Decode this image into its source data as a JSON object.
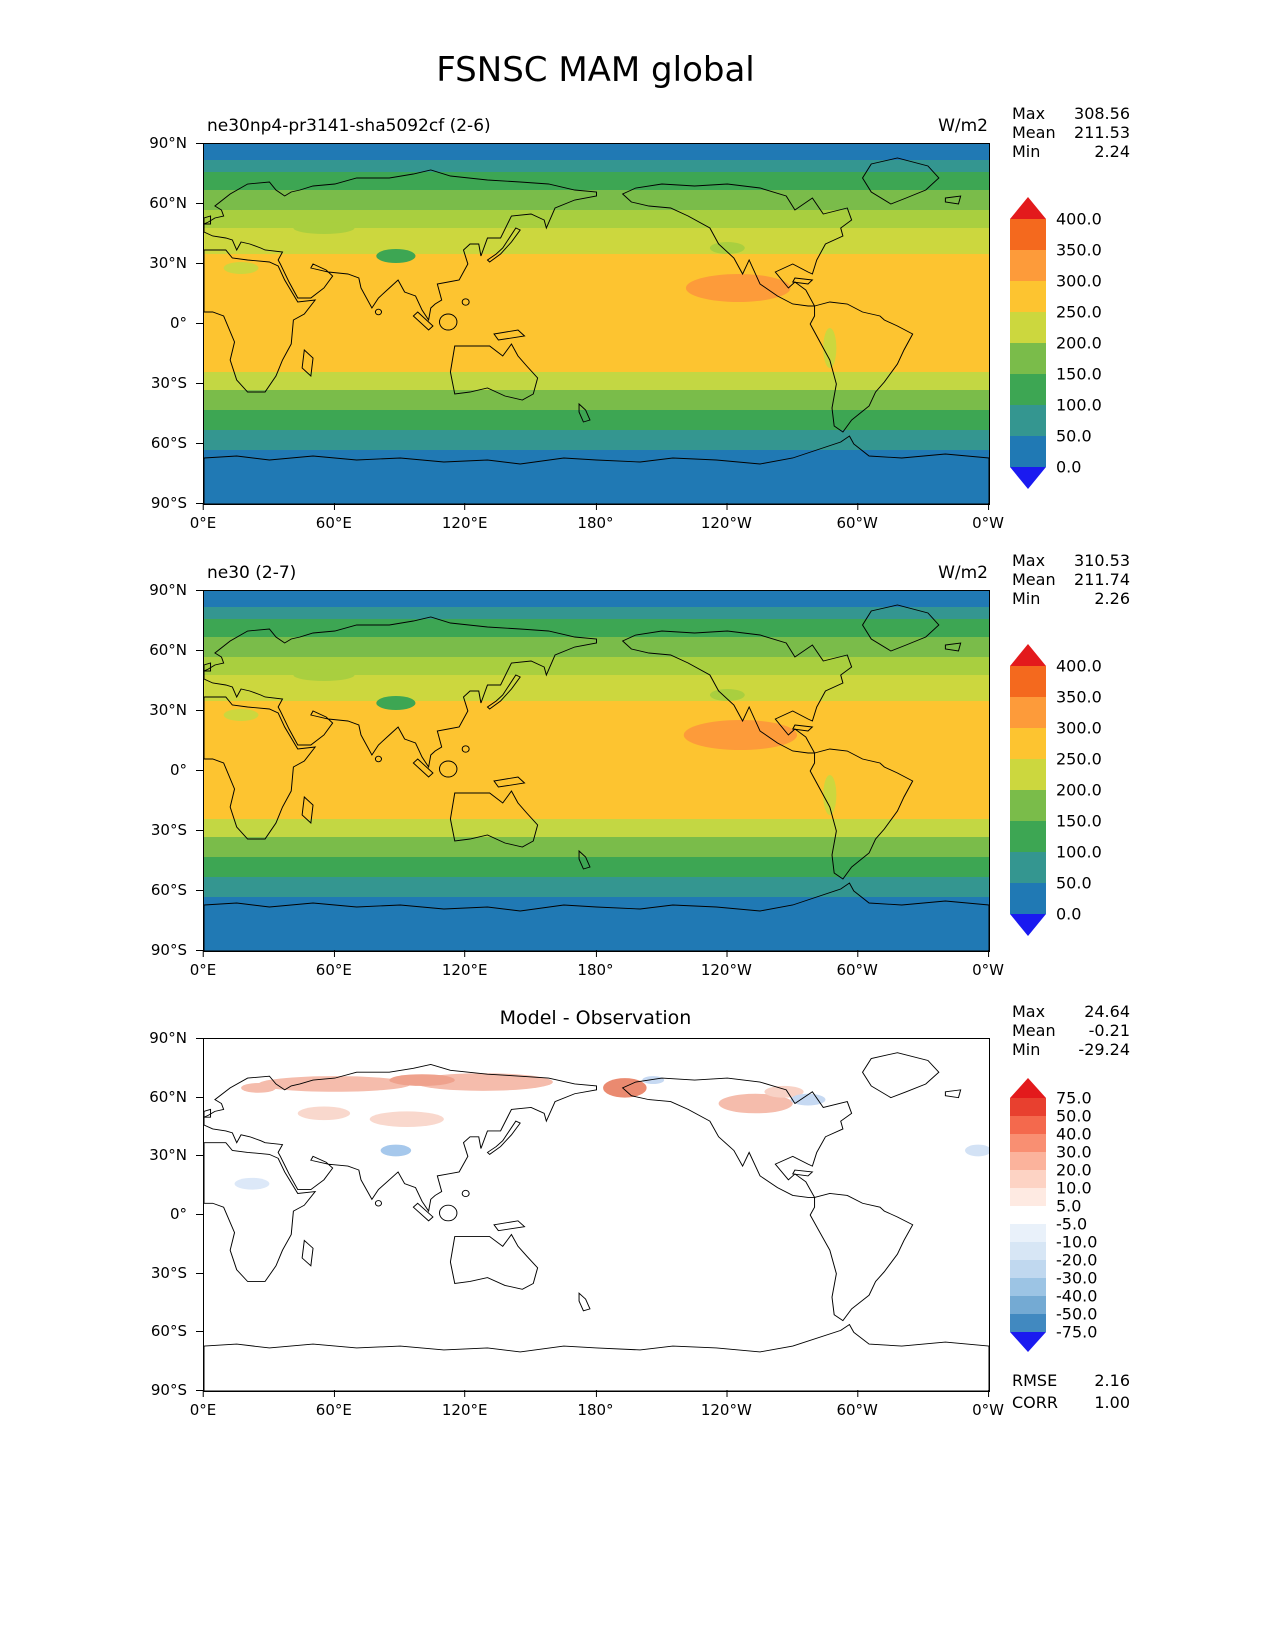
{
  "title": "FSNSC MAM global",
  "chart_data": {
    "type": "heatmap",
    "title": "FSNSC MAM global",
    "units": "W/m2",
    "axes": {
      "lat_ticks": [
        "90°N",
        "60°N",
        "30°N",
        "0°",
        "30°S",
        "60°S",
        "90°S"
      ],
      "lon_ticks": [
        "0°E",
        "60°E",
        "120°E",
        "180°",
        "120°W",
        "60°W",
        "0°W"
      ]
    },
    "stats_labels": {
      "max": "Max",
      "mean": "Mean",
      "min": "Min"
    },
    "panels": [
      {
        "title": "ne30np4-pr3141-sha5092cf (2-6)",
        "units_label": "W/m2",
        "stats": {
          "max": "308.56",
          "mean": "211.53",
          "min": "2.24"
        }
      },
      {
        "title": "ne30 (2-7)",
        "units_label": "W/m2",
        "stats": {
          "max": "310.53",
          "mean": "211.74",
          "min": "2.26"
        }
      },
      {
        "title": "Model - Observation",
        "stats": {
          "max": "24.64",
          "mean": "-0.21",
          "min": "-29.24"
        },
        "metrics": {
          "rmse_label": "RMSE",
          "rmse": "2.16",
          "corr_label": "CORR",
          "corr": "1.00"
        }
      }
    ],
    "colorbar_flux": {
      "labels": [
        "400.0",
        "350.0",
        "300.0",
        "250.0",
        "200.0",
        "150.0",
        "100.0",
        "50.0",
        "0.0"
      ],
      "cells": [
        "#f4691e",
        "#fd9b3a",
        "#fdc430",
        "#ccd73e",
        "#7abc4a",
        "#3da653",
        "#349690",
        "#2079b4"
      ],
      "arrow_top": "#e31a1c",
      "arrow_bottom": "#1a1af0"
    },
    "colorbar_diff": {
      "labels": [
        "75.0",
        "50.0",
        "40.0",
        "30.0",
        "20.0",
        "10.0",
        "5.0",
        "-5.0",
        "-10.0",
        "-20.0",
        "-30.0",
        "-40.0",
        "-50.0",
        "-75.0"
      ],
      "cells": [
        "#e8402f",
        "#f4694d",
        "#f98f72",
        "#fbb39c",
        "#fdd3c4",
        "#feeae2",
        "#ffffff",
        "#e9f1fa",
        "#d7e6f5",
        "#c0d8ef",
        "#9cc4e4",
        "#74aad3",
        "#4189c0"
      ],
      "arrow_top": "#e31a1c",
      "arrow_bottom": "#1a1af0"
    },
    "zonal_bands": [
      {
        "from": 90,
        "to": 82,
        "color": "#2079b4"
      },
      {
        "from": 82,
        "to": 76,
        "color": "#349690"
      },
      {
        "from": 76,
        "to": 67,
        "color": "#3da653"
      },
      {
        "from": 67,
        "to": 57,
        "color": "#7abc4a"
      },
      {
        "from": 57,
        "to": 48,
        "color": "#a9cf3f"
      },
      {
        "from": 48,
        "to": 35,
        "color": "#ccd73e"
      },
      {
        "from": 35,
        "to": -24,
        "color": "#fdc430"
      },
      {
        "from": -24,
        "to": -33,
        "color": "#c3d743"
      },
      {
        "from": -33,
        "to": -43,
        "color": "#7abc4a"
      },
      {
        "from": -43,
        "to": -53,
        "color": "#3da653"
      },
      {
        "from": -53,
        "to": -63,
        "color": "#349690"
      },
      {
        "from": -63,
        "to": -90,
        "color": "#2079b4"
      }
    ]
  }
}
